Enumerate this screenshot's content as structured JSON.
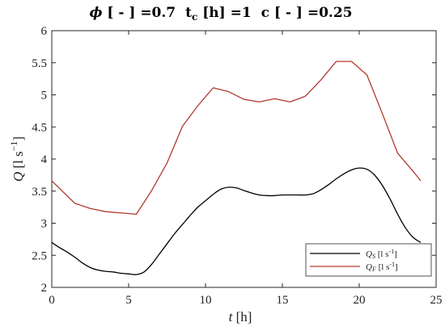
{
  "title": {
    "phi_symbol": "ϕ",
    "phi_part": " [ - ] =0.7",
    "tc_part": "t",
    "tc_sub": "c",
    "tc_rest": " [h] =1",
    "c_part": "c [ - ] =0.25"
  },
  "axes": {
    "xlabel_var": "t",
    "xlabel_unit": " [h]",
    "ylabel_var": "Q",
    "ylabel_unit": " [l s",
    "ylabel_exp": "−1",
    "ylabel_close": "]"
  },
  "legend": {
    "qs_var": "Q",
    "qs_sub": "S",
    "qs_unit": " [l s",
    "qs_exp": "-1",
    "qs_close": "]",
    "qf_var": "Q",
    "qf_sub": "F",
    "qf_unit": " [l s",
    "qf_exp": "-1",
    "qf_close": "]"
  },
  "chart_data": {
    "type": "line",
    "xlim": [
      0,
      25
    ],
    "ylim": [
      2,
      6
    ],
    "xticks": [
      0,
      5,
      10,
      15,
      20,
      25
    ],
    "yticks": [
      2,
      2.5,
      3,
      3.5,
      4,
      4.5,
      5,
      5.5,
      6
    ],
    "ytick_labels": [
      "2",
      "2.5",
      "3",
      "3.5",
      "4",
      "4.5",
      "5",
      "5.5",
      "6"
    ],
    "grid": false,
    "legend_position": "bottom-right",
    "series": [
      {
        "name": "Q_S [l s^-1]",
        "color": "#000000",
        "x": [
          0,
          0.5,
          1,
          1.5,
          2,
          2.5,
          3,
          3.5,
          4,
          4.5,
          5,
          5.5,
          6,
          6.5,
          7,
          7.5,
          8,
          8.5,
          9,
          9.5,
          10,
          10.5,
          11,
          11.5,
          12,
          12.5,
          13,
          13.5,
          14,
          14.5,
          15,
          15.5,
          16,
          16.5,
          17,
          17.5,
          18,
          18.5,
          19,
          19.5,
          20,
          20.5,
          21,
          21.5,
          22,
          22.5,
          23,
          23.5,
          24
        ],
        "y": [
          2.7,
          2.62,
          2.55,
          2.47,
          2.38,
          2.31,
          2.27,
          2.25,
          2.24,
          2.22,
          2.21,
          2.2,
          2.24,
          2.36,
          2.52,
          2.68,
          2.84,
          2.98,
          3.12,
          3.25,
          3.35,
          3.45,
          3.53,
          3.56,
          3.55,
          3.51,
          3.47,
          3.44,
          3.43,
          3.43,
          3.44,
          3.44,
          3.44,
          3.44,
          3.46,
          3.52,
          3.6,
          3.69,
          3.77,
          3.83,
          3.86,
          3.84,
          3.75,
          3.59,
          3.38,
          3.14,
          2.93,
          2.78,
          2.7
        ]
      },
      {
        "name": "Q_F [l s^-1]",
        "color": "#b03a2e",
        "x": [
          0,
          1.5,
          2.5,
          3.5,
          4.5,
          5.5,
          6.5,
          7.5,
          8.5,
          9.5,
          10.5,
          11.5,
          12.5,
          13.5,
          14.5,
          15.5,
          16.5,
          17.5,
          18.5,
          19.5,
          20.5,
          21.5,
          22.5,
          23.5,
          24
        ],
        "y": [
          3.66,
          3.31,
          3.23,
          3.18,
          3.16,
          3.14,
          3.51,
          3.94,
          4.51,
          4.83,
          5.11,
          5.05,
          4.93,
          4.89,
          4.94,
          4.89,
          4.98,
          5.23,
          5.52,
          5.52,
          5.31,
          4.71,
          4.09,
          3.81,
          3.66
        ]
      }
    ]
  }
}
